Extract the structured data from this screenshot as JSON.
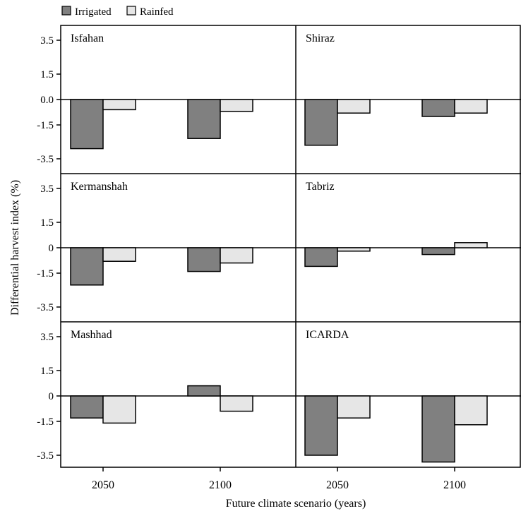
{
  "chart_data": {
    "type": "bar",
    "title": "",
    "xlabel": "Future climate scenario (years)",
    "ylabel": "Differential harvest index (%)",
    "categories": [
      "2050",
      "2100"
    ],
    "legend": {
      "position": "top-left",
      "entries": [
        {
          "name": "Irrigated",
          "color": "#808080"
        },
        {
          "name": "Rainfed",
          "color": "#e6e6e6"
        }
      ]
    },
    "ylim": [
      -4.0,
      4.0
    ],
    "grid": false,
    "panel_ticks": [
      [
        "3.5",
        "1.5",
        "0.0",
        "-1.5",
        "-3.5"
      ],
      [
        "3.5",
        "1.5",
        "0",
        "-1.5",
        "-3.5"
      ],
      [
        "3.5",
        "1.5",
        "0",
        "-1.5",
        "-3.5"
      ]
    ],
    "panels": [
      {
        "name": "Isfahan",
        "series": [
          {
            "name": "Irrigated",
            "values": [
              -2.9,
              -2.3
            ]
          },
          {
            "name": "Rainfed",
            "values": [
              -0.6,
              -0.7
            ]
          }
        ]
      },
      {
        "name": "Shiraz",
        "series": [
          {
            "name": "Irrigated",
            "values": [
              -2.7,
              -1.0
            ]
          },
          {
            "name": "Rainfed",
            "values": [
              -0.8,
              -0.8
            ]
          }
        ]
      },
      {
        "name": "Kermanshah",
        "series": [
          {
            "name": "Irrigated",
            "values": [
              -2.2,
              -1.4
            ]
          },
          {
            "name": "Rainfed",
            "values": [
              -0.8,
              -0.9
            ]
          }
        ]
      },
      {
        "name": "Tabriz",
        "series": [
          {
            "name": "Irrigated",
            "values": [
              -1.1,
              -0.4
            ]
          },
          {
            "name": "Rainfed",
            "values": [
              -0.2,
              0.3
            ]
          }
        ]
      },
      {
        "name": "Mashhad",
        "series": [
          {
            "name": "Irrigated",
            "values": [
              -1.3,
              0.6
            ]
          },
          {
            "name": "Rainfed",
            "values": [
              -1.6,
              -0.9
            ]
          }
        ]
      },
      {
        "name": "ICARDA",
        "series": [
          {
            "name": "Irrigated",
            "values": [
              -3.5,
              -3.9
            ]
          },
          {
            "name": "Rainfed",
            "values": [
              -1.3,
              -1.7
            ]
          }
        ]
      }
    ],
    "x_tick_labels": [
      "2050",
      "2100",
      "2050",
      "2100"
    ]
  },
  "colors": {
    "irrigated": "#808080",
    "rainfed": "#e6e6e6",
    "stroke": "#000000"
  }
}
